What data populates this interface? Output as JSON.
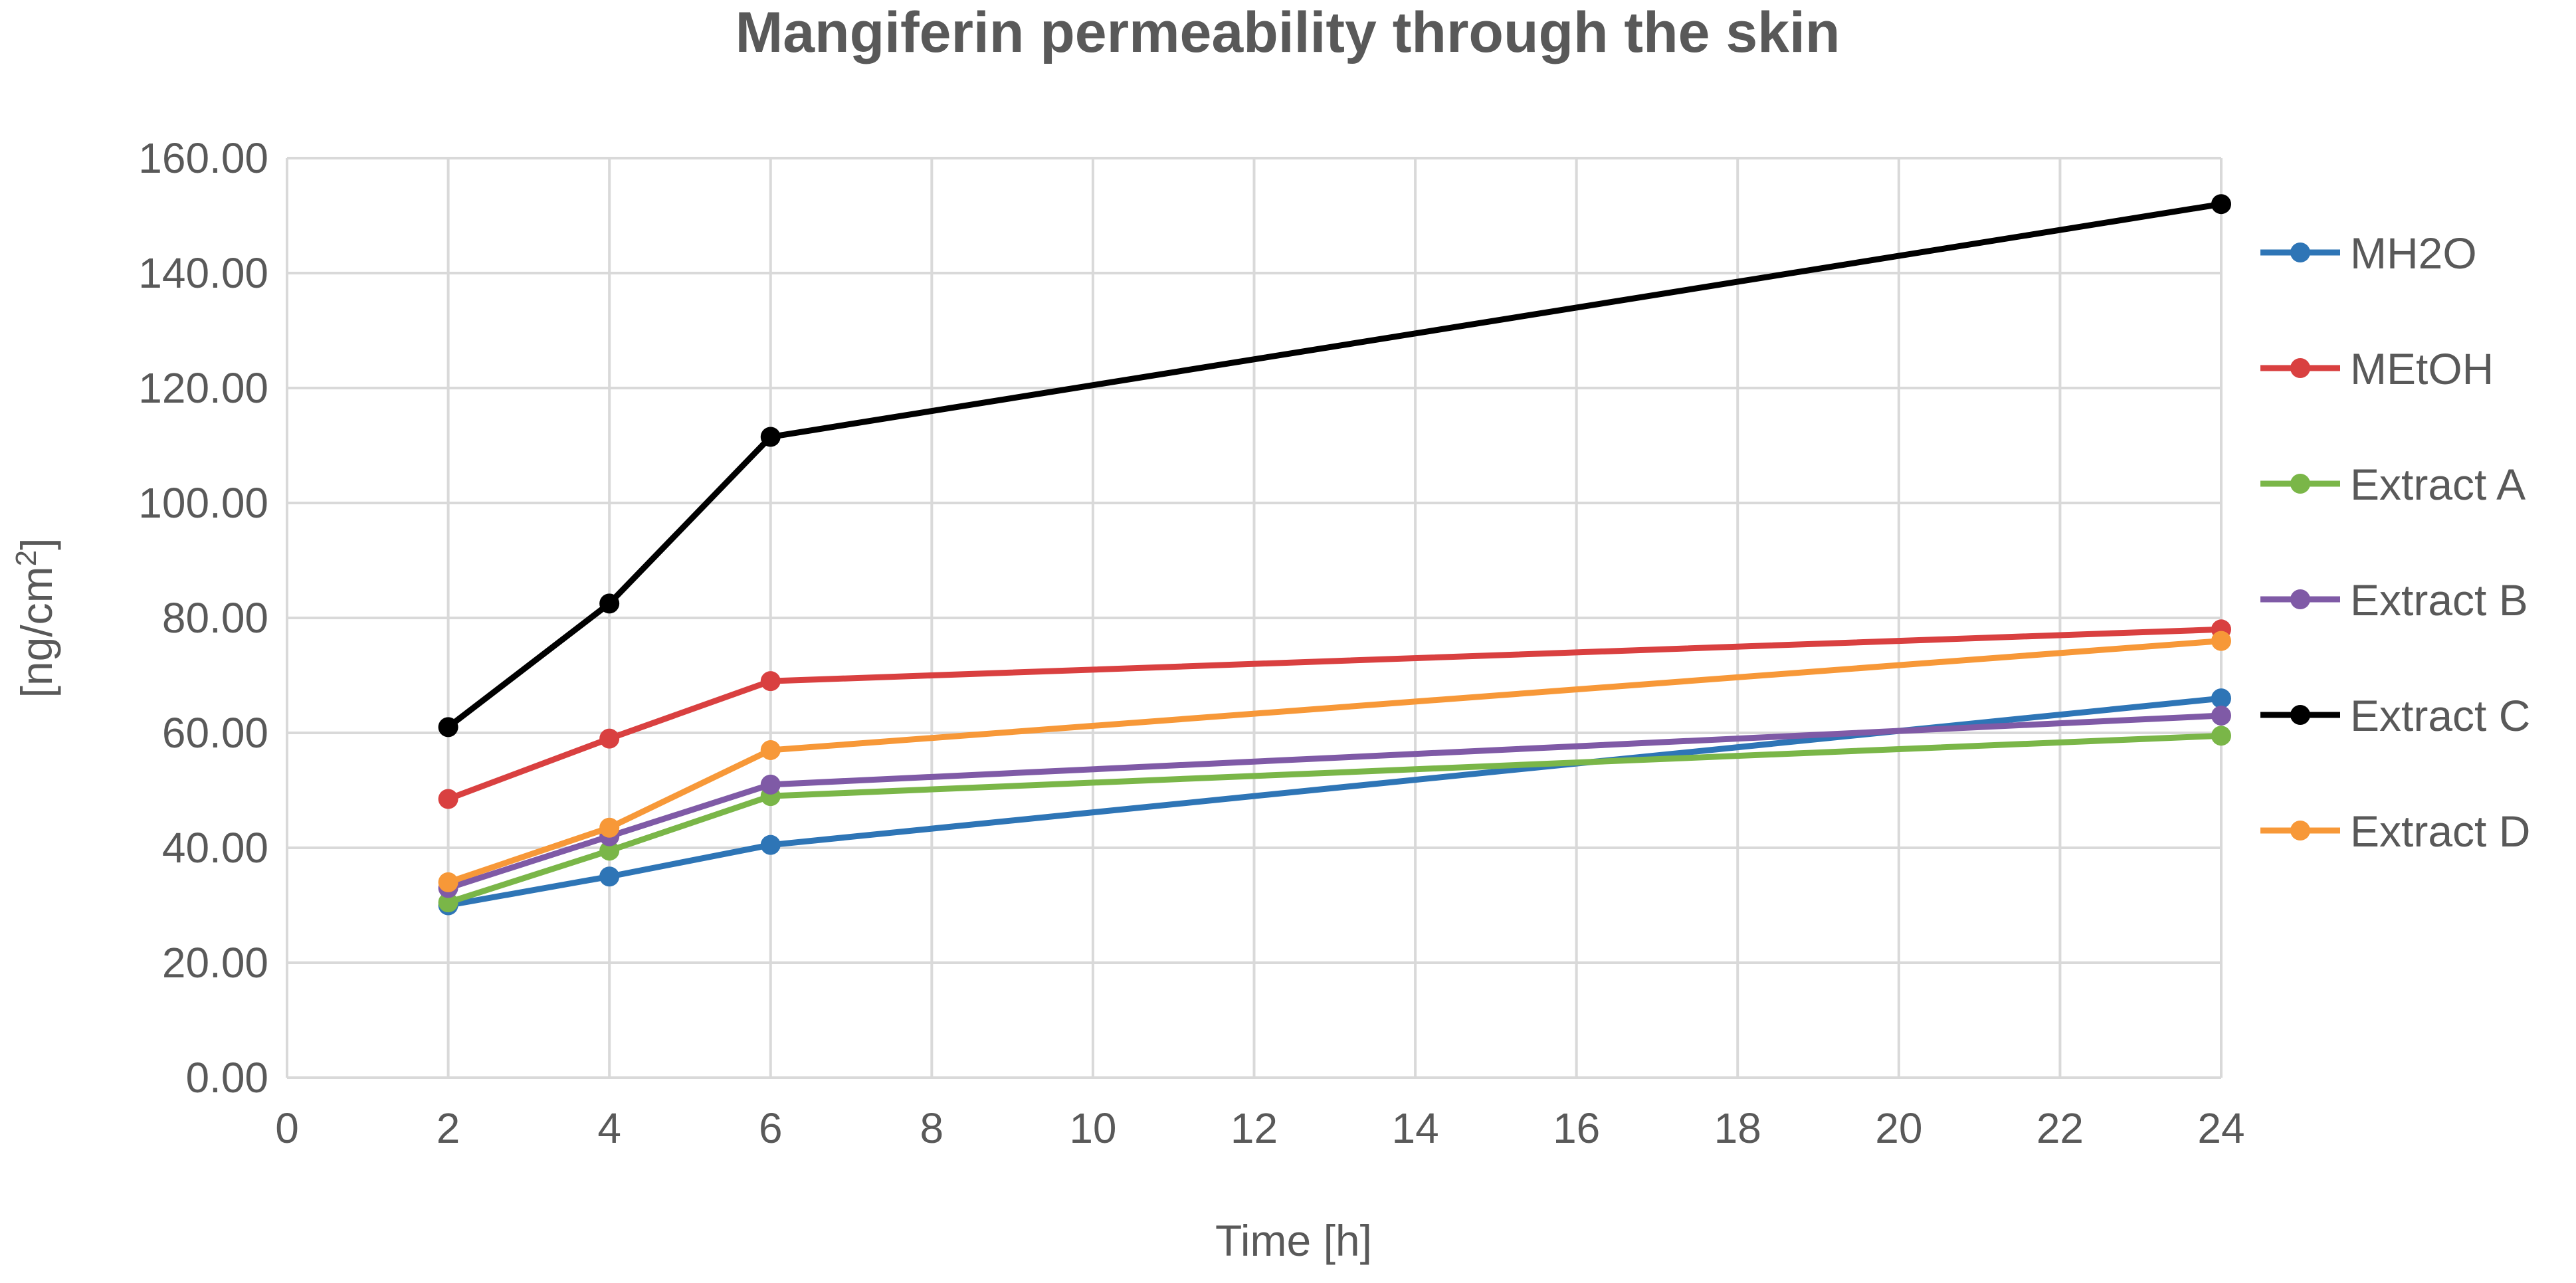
{
  "chart_data": {
    "type": "line",
    "title": "Mangiferin permeability through the skin",
    "xlabel": "Time [h]",
    "ylabel": "[ng/cm2]",
    "ylabel_base": "[ng/cm",
    "ylabel_sup": "2",
    "ylabel_end": "]",
    "xlim": [
      0,
      24
    ],
    "ylim": [
      0,
      160
    ],
    "x_ticks": [
      0,
      2,
      4,
      6,
      8,
      10,
      12,
      14,
      16,
      18,
      20,
      22,
      24
    ],
    "x_tick_labels": [
      "0",
      "2",
      "4",
      "6",
      "8",
      "10",
      "12",
      "14",
      "16",
      "18",
      "20",
      "22",
      "24"
    ],
    "y_ticks": [
      0,
      20,
      40,
      60,
      80,
      100,
      120,
      140,
      160
    ],
    "y_tick_labels": [
      "0.00",
      "20.00",
      "40.00",
      "60.00",
      "80.00",
      "100.00",
      "120.00",
      "140.00",
      "160.00"
    ],
    "grid": true,
    "legend_position": "right",
    "x": [
      2,
      4,
      6,
      24
    ],
    "series": [
      {
        "name": "MH2O",
        "color": "#2e75b6",
        "values": [
          30.0,
          35.0,
          40.5,
          66.0
        ]
      },
      {
        "name": "MEtOH",
        "color": "#d94040",
        "values": [
          48.5,
          59.0,
          69.0,
          78.0
        ]
      },
      {
        "name": "Extract A",
        "color": "#7ab648",
        "values": [
          30.5,
          39.5,
          49.0,
          59.5
        ]
      },
      {
        "name": "Extract B",
        "color": "#7f5aa6",
        "values": [
          33.0,
          42.0,
          51.0,
          63.0
        ]
      },
      {
        "name": "Extract C",
        "color": "#000000",
        "values": [
          61.0,
          82.5,
          111.5,
          152.0
        ]
      },
      {
        "name": "Extract D",
        "color": "#f79838",
        "values": [
          34.0,
          43.5,
          57.0,
          76.0
        ]
      }
    ]
  }
}
